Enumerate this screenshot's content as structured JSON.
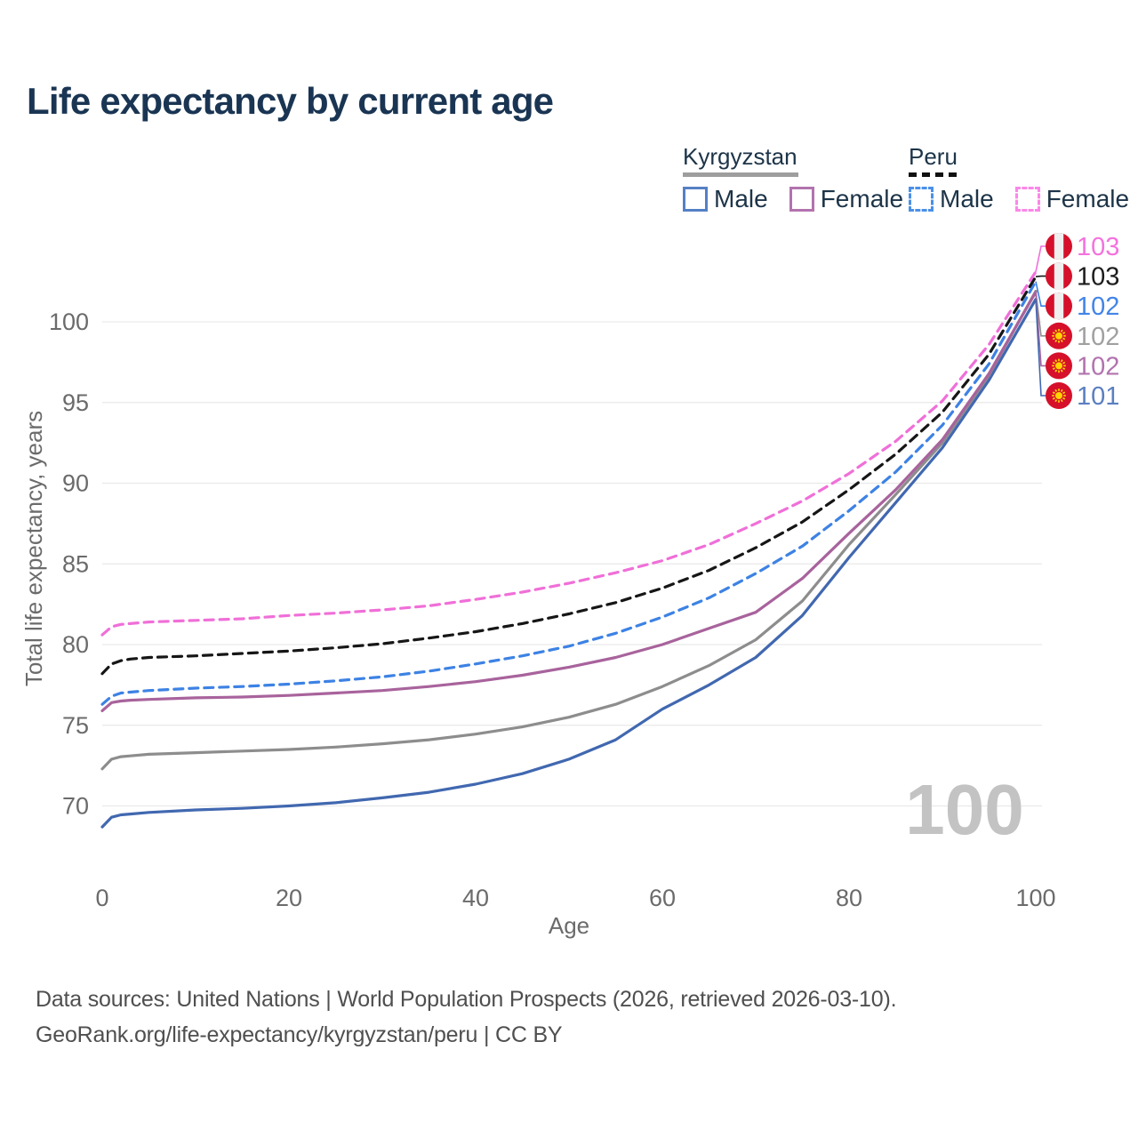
{
  "title": "Life expectancy by current age",
  "legend": {
    "groups": [
      {
        "country": "Kyrgyzstan",
        "line_style": "solid",
        "marker_color": "#9e9e9e",
        "items": [
          {
            "label": "Male",
            "color": "#5580c5"
          },
          {
            "label": "Female",
            "color": "#b273ae"
          }
        ]
      },
      {
        "country": "Peru",
        "line_style": "dashed",
        "marker_color": "#111111",
        "items": [
          {
            "label": "Male",
            "color": "#4a90e8"
          },
          {
            "label": "Female",
            "color": "#fb87e8"
          }
        ]
      }
    ]
  },
  "watermark": "100",
  "footer": {
    "line1": "Data sources: United Nations | World Population Prospects (2026, retrieved 2026-03-10).",
    "line2": "GeoRank.org/life-expectancy/kyrgyzstan/peru | CC BY"
  },
  "chart_data": {
    "type": "line",
    "title": "Life expectancy by current age",
    "xlabel": "Age",
    "ylabel": "Total life expectancy, years",
    "xlim": [
      0,
      100
    ],
    "ylim": [
      67.5,
      104
    ],
    "x_ticks": [
      0,
      20,
      40,
      60,
      80,
      100
    ],
    "y_ticks": [
      100,
      95,
      90,
      85,
      80,
      75,
      70
    ],
    "grid": "horizontal",
    "ages": [
      0,
      1,
      2,
      3,
      5,
      10,
      15,
      20,
      25,
      30,
      35,
      40,
      45,
      50,
      55,
      60,
      65,
      70,
      75,
      80,
      85,
      90,
      95,
      100
    ],
    "series": [
      {
        "key": "kg-male",
        "name": "Kyrgyzstan Male",
        "country": "Kyrgyzstan",
        "sex": "Male",
        "color": "#4168b0",
        "dashed": false,
        "values": [
          68.7,
          69.3,
          69.45,
          69.5,
          69.6,
          69.75,
          69.85,
          70.0,
          70.2,
          70.5,
          70.85,
          71.35,
          72.0,
          72.9,
          74.1,
          76.0,
          77.5,
          79.2,
          81.8,
          85.4,
          88.8,
          92.2,
          96.4,
          101.4
        ]
      },
      {
        "key": "kg-all",
        "name": "Kyrgyzstan Both sexes",
        "country": "Kyrgyzstan",
        "sex": "Both",
        "color": "#8d8d8d",
        "dashed": false,
        "values": [
          72.3,
          72.9,
          73.05,
          73.1,
          73.2,
          73.3,
          73.4,
          73.5,
          73.65,
          73.85,
          74.1,
          74.45,
          74.9,
          75.5,
          76.3,
          77.4,
          78.7,
          80.3,
          82.7,
          86.2,
          89.3,
          92.5,
          96.7,
          101.9
        ]
      },
      {
        "key": "kg-female",
        "name": "Kyrgyzstan Female",
        "country": "Kyrgyzstan",
        "sex": "Female",
        "color": "#a8639c",
        "dashed": false,
        "values": [
          75.9,
          76.4,
          76.5,
          76.55,
          76.6,
          76.7,
          76.75,
          76.85,
          77.0,
          77.15,
          77.4,
          77.7,
          78.1,
          78.6,
          79.2,
          80.0,
          81.0,
          82.0,
          84.1,
          86.9,
          89.6,
          92.7,
          96.8,
          101.85
        ]
      },
      {
        "key": "pe-male",
        "name": "Peru Male",
        "country": "Peru",
        "sex": "Male",
        "color": "#3d82e4",
        "dashed": true,
        "values": [
          76.3,
          76.8,
          77.0,
          77.05,
          77.15,
          77.3,
          77.4,
          77.55,
          77.75,
          78.0,
          78.35,
          78.8,
          79.3,
          79.9,
          80.7,
          81.7,
          82.9,
          84.4,
          86.1,
          88.3,
          90.7,
          93.6,
          97.4,
          102.5
        ]
      },
      {
        "key": "pe-all",
        "name": "Peru Both sexes",
        "country": "Peru",
        "sex": "Both",
        "color": "#161616",
        "dashed": true,
        "values": [
          78.2,
          78.8,
          79.0,
          79.1,
          79.2,
          79.3,
          79.45,
          79.6,
          79.8,
          80.05,
          80.4,
          80.8,
          81.3,
          81.9,
          82.6,
          83.5,
          84.6,
          86.0,
          87.6,
          89.6,
          91.8,
          94.4,
          98.0,
          102.8
        ]
      },
      {
        "key": "pe-female",
        "name": "Peru Female",
        "country": "Peru",
        "sex": "Female",
        "color": "#f06fd8",
        "dashed": true,
        "values": [
          80.6,
          81.1,
          81.25,
          81.3,
          81.4,
          81.5,
          81.6,
          81.8,
          81.95,
          82.15,
          82.4,
          82.8,
          83.25,
          83.8,
          84.45,
          85.2,
          86.2,
          87.5,
          88.9,
          90.6,
          92.6,
          95.1,
          98.6,
          103.1
        ]
      }
    ],
    "end_labels": [
      {
        "series": "pe-female",
        "text": "103",
        "color": "#f472dd",
        "flag": "peru"
      },
      {
        "series": "pe-all",
        "text": "103",
        "color": "#1c1c1c",
        "flag": "peru"
      },
      {
        "series": "pe-male",
        "text": "102",
        "color": "#4285e8",
        "flag": "peru"
      },
      {
        "series": "kg-all",
        "text": "102",
        "color": "#a0a0a0",
        "flag": "kyrgyzstan"
      },
      {
        "series": "kg-female",
        "text": "102",
        "color": "#b273ae",
        "flag": "kyrgyzstan"
      },
      {
        "series": "kg-male",
        "text": "101",
        "color": "#5b7fc0",
        "flag": "kyrgyzstan"
      }
    ],
    "flag_colors": {
      "red": "#d6102a",
      "white": "#efefef",
      "yellow": "#ffd400"
    }
  }
}
